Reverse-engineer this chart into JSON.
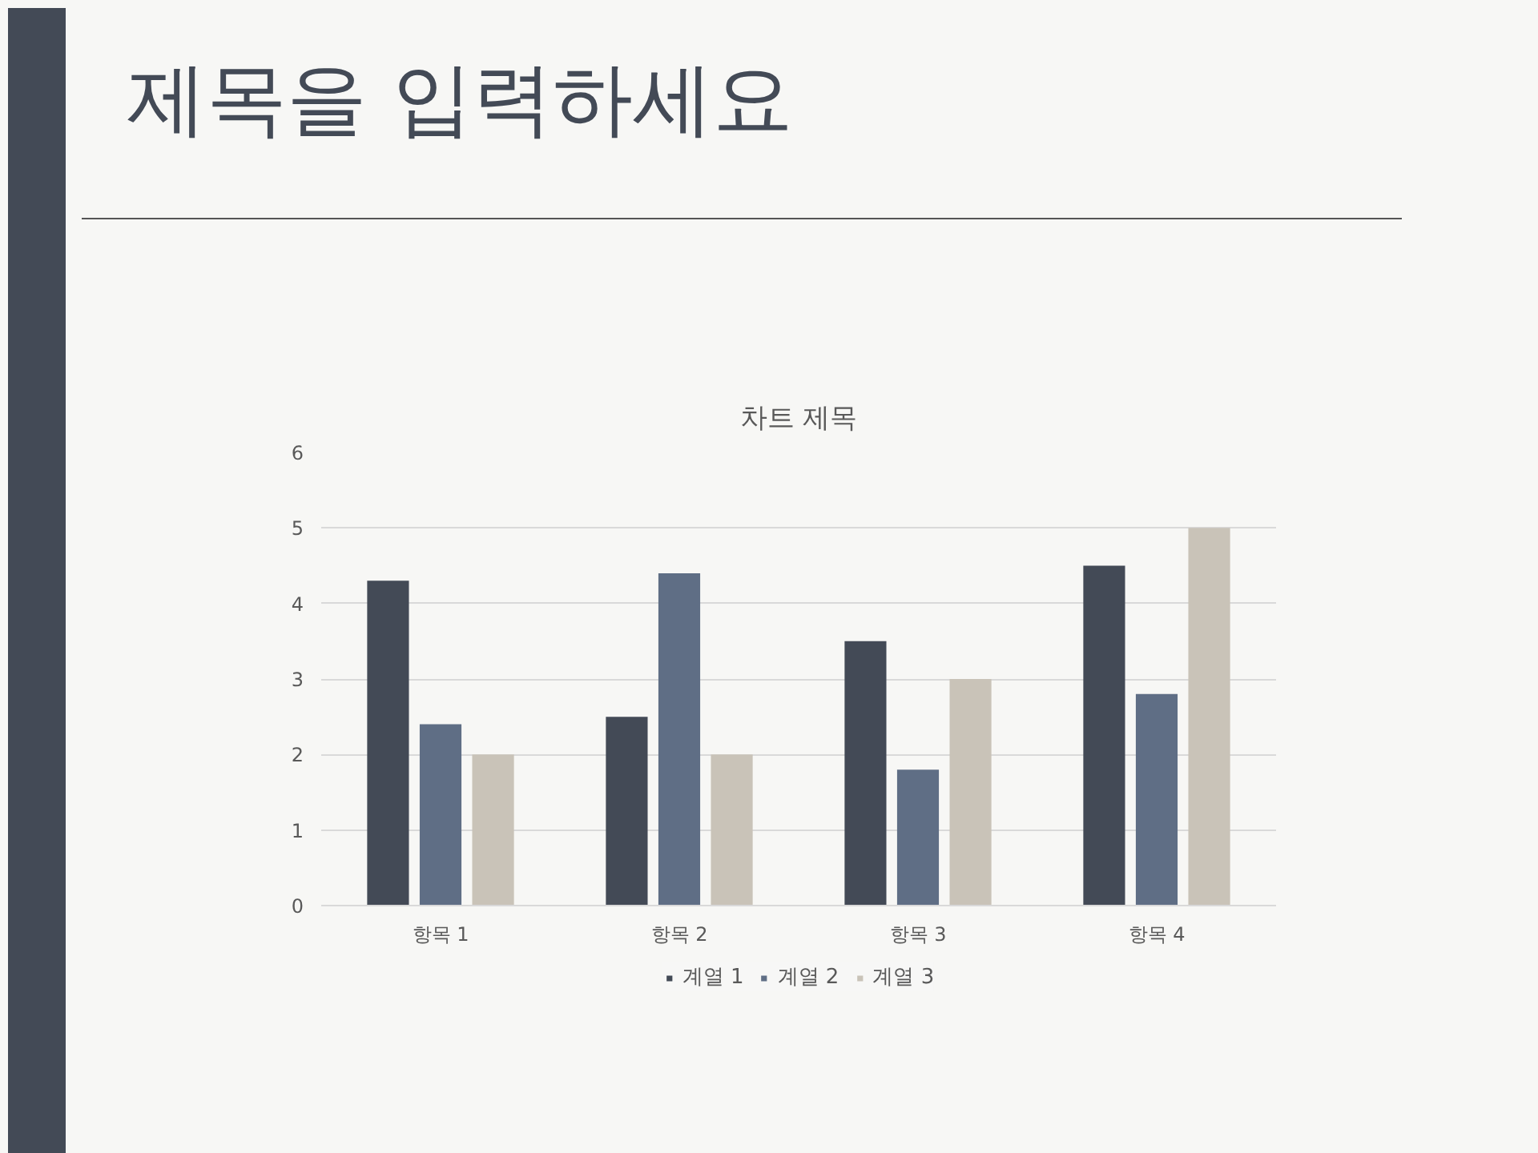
{
  "chart_data": {
    "type": "bar",
    "title": "제목을 입력하세요",
    "subtitle": "차트 제목",
    "categories": [
      "항목 1",
      "항목 2",
      "항목 3",
      "항목 4"
    ],
    "series": [
      {
        "name": "계열 1",
        "color": "#434a56",
        "values": [
          4.3,
          2.5,
          3.5,
          4.5
        ]
      },
      {
        "name": "계열 2",
        "color": "#5f6e85",
        "values": [
          2.4,
          4.4,
          1.8,
          2.8
        ]
      },
      {
        "name": "계열 3",
        "color": "#c9c3b8",
        "values": [
          2,
          2,
          3,
          5
        ]
      }
    ],
    "ylim": [
      0,
      6
    ],
    "yticks": [
      0,
      1,
      2,
      3,
      4,
      5,
      6
    ],
    "grid": "y",
    "legend": "bottom"
  }
}
